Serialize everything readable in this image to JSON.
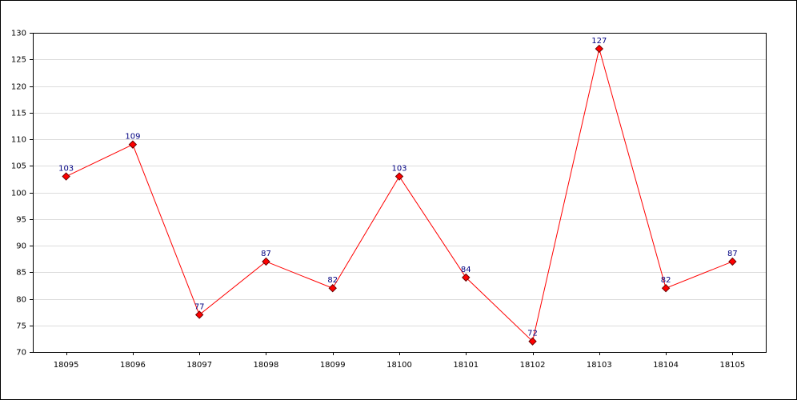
{
  "chart_data": {
    "type": "line",
    "categories": [
      "18095",
      "18096",
      "18097",
      "18098",
      "18099",
      "18100",
      "18101",
      "18102",
      "18103",
      "18104",
      "18105"
    ],
    "values": [
      103,
      109,
      77,
      87,
      82,
      103,
      84,
      72,
      127,
      82,
      87
    ],
    "color": "#ff0000",
    "ylim": [
      70,
      130
    ],
    "yticks": [
      70,
      75,
      80,
      85,
      90,
      95,
      100,
      105,
      110,
      115,
      120,
      125,
      130
    ],
    "grid": true
  }
}
